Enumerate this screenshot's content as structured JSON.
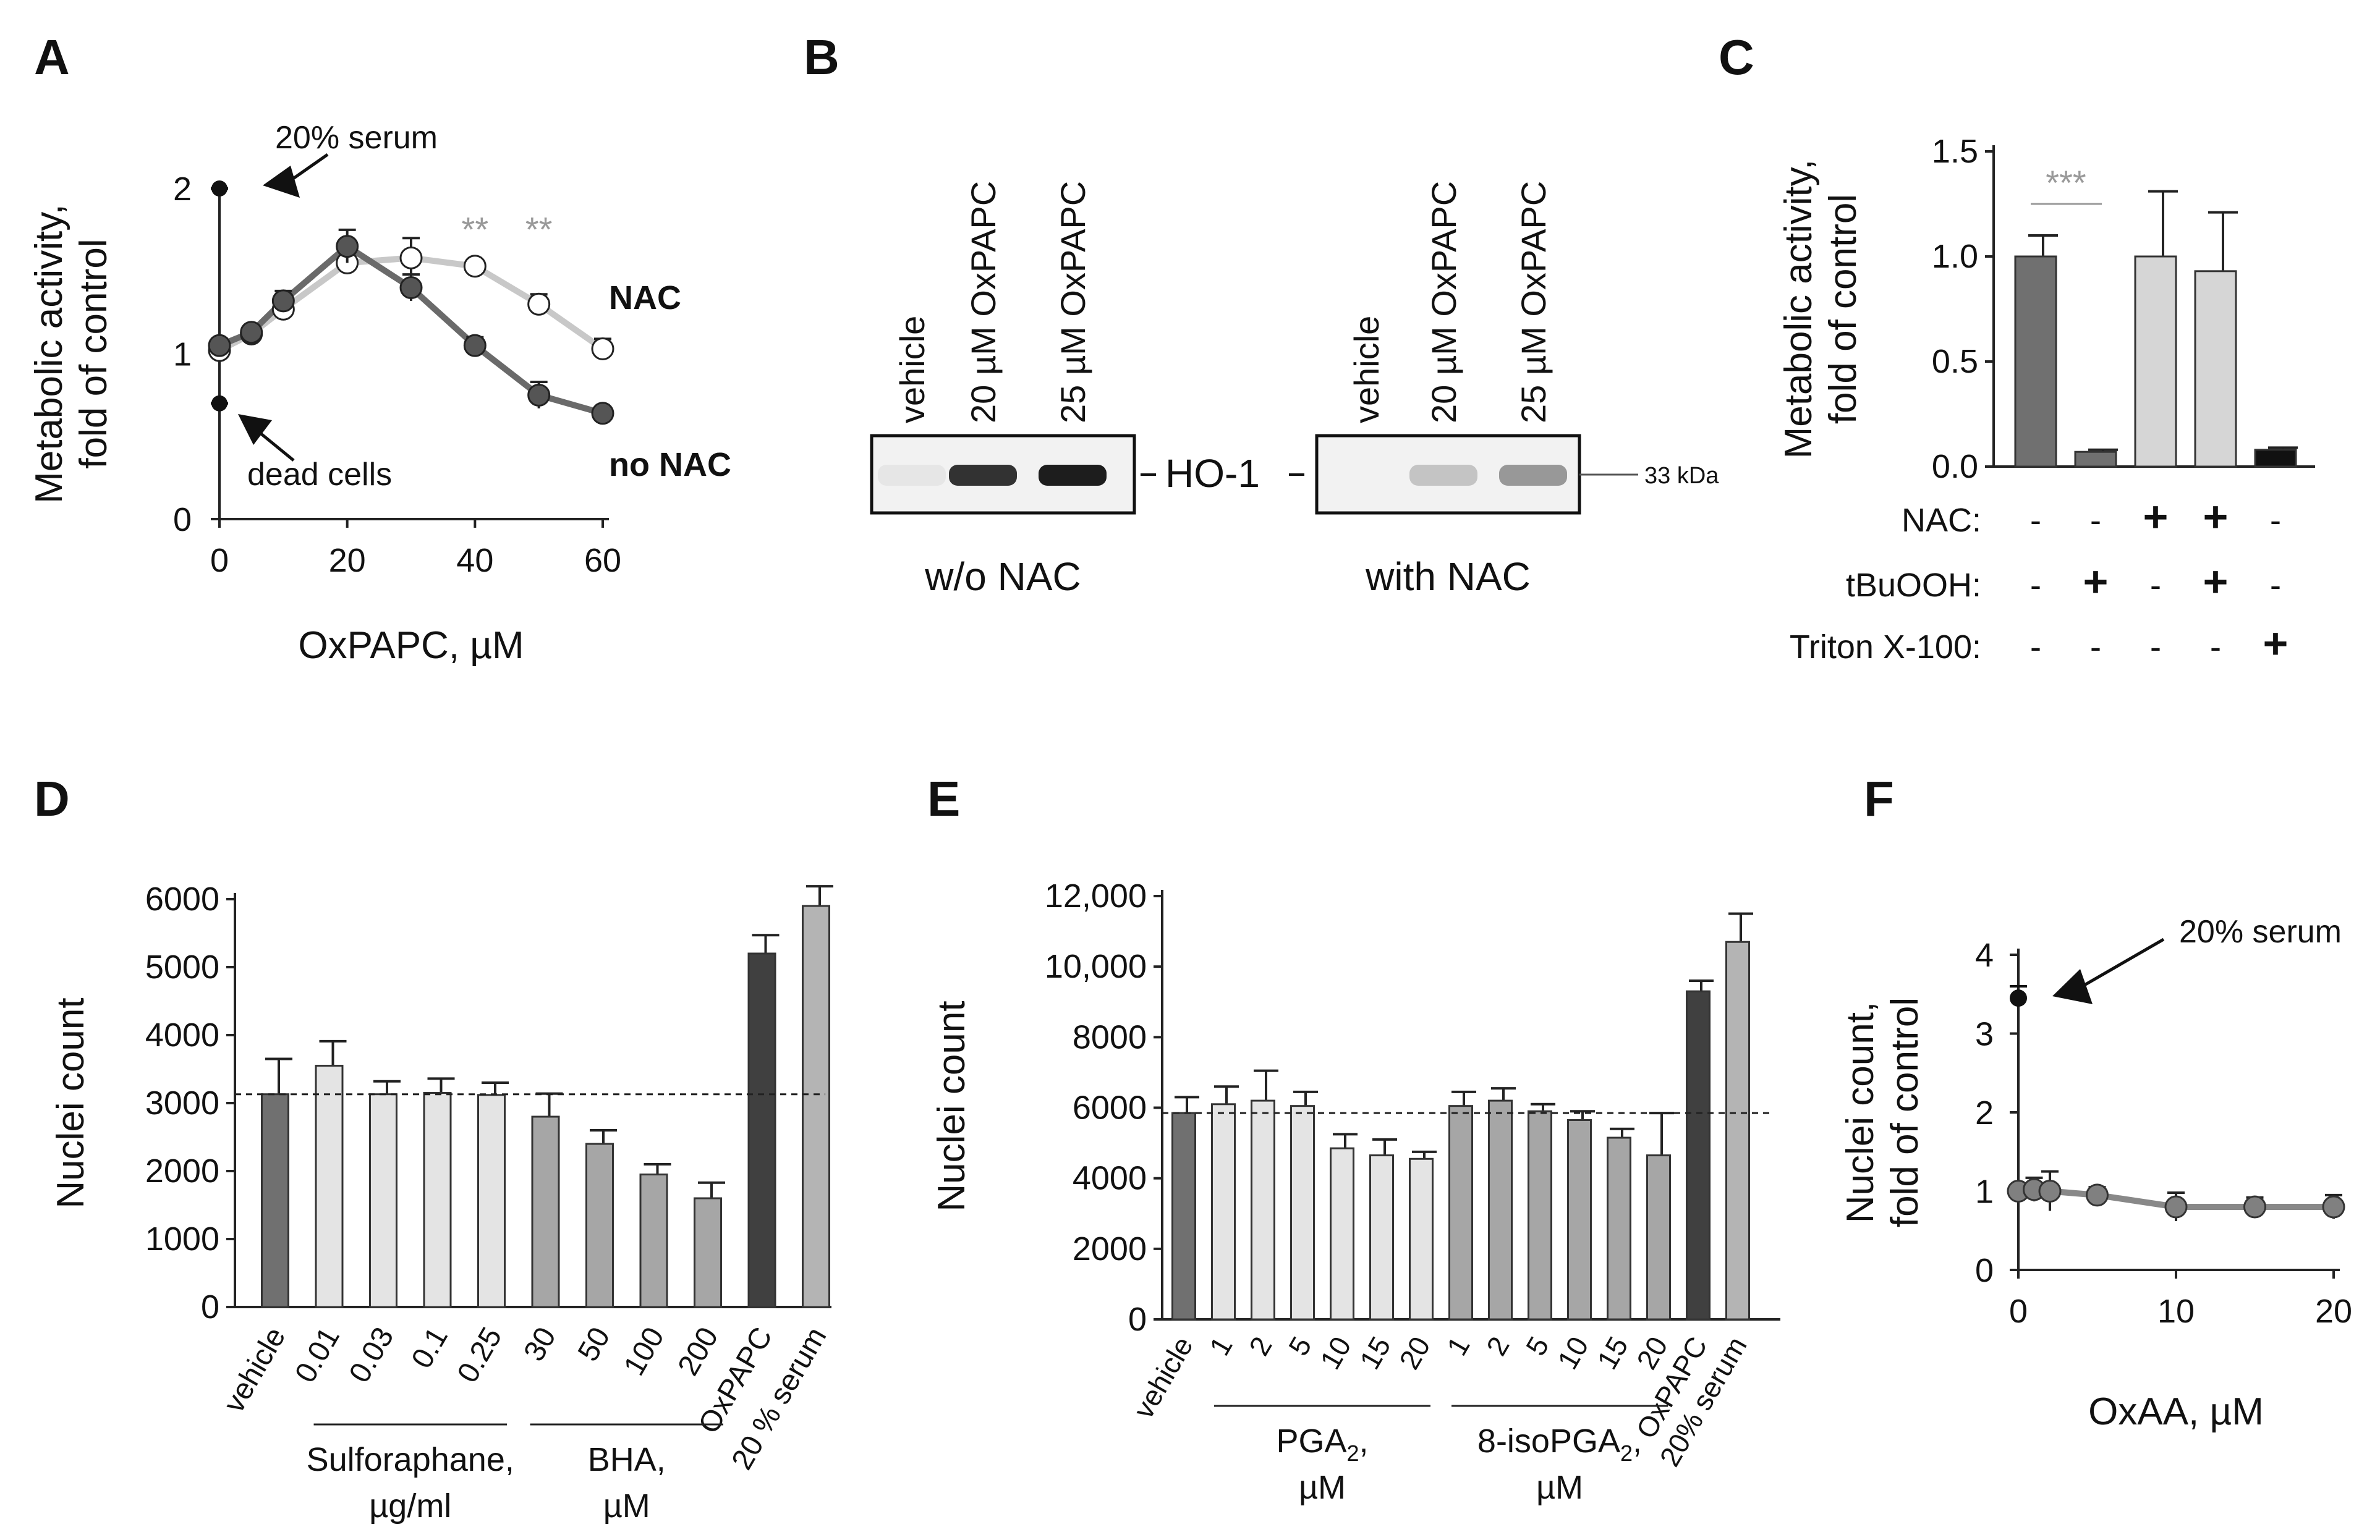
{
  "chart_data": [
    {
      "panel": "A",
      "type": "line",
      "xlabel": "OxPAPC, µM",
      "ylabel": "Metabolic activity, fold of control",
      "xlim": [
        0,
        60
      ],
      "ylim": [
        0,
        2
      ],
      "xticks": [
        "0",
        "20",
        "40",
        "60"
      ],
      "yticks": [
        "0",
        "1",
        "2"
      ],
      "series": [
        {
          "name": "NAC",
          "color": "#ffffff",
          "x": [
            0,
            5,
            10,
            20,
            30,
            40,
            50,
            60
          ],
          "y": [
            1.02,
            1.12,
            1.27,
            1.55,
            1.58,
            1.53,
            1.3,
            1.03
          ],
          "err": [
            0.04,
            0.03,
            0.05,
            0.06,
            0.12,
            0.03,
            0.06,
            0.06
          ]
        },
        {
          "name": "no NAC",
          "color": "#555555",
          "x": [
            0,
            5,
            10,
            20,
            30,
            40,
            50,
            60
          ],
          "y": [
            1.05,
            1.13,
            1.32,
            1.65,
            1.4,
            1.05,
            0.75,
            0.64
          ],
          "err": [
            0.04,
            0.03,
            0.06,
            0.1,
            0.08,
            0.05,
            0.08,
            0.03
          ]
        }
      ],
      "reference_points": [
        {
          "label": "20% serum",
          "x": 0,
          "y": 2.0
        },
        {
          "label": "dead cells",
          "x": 0,
          "y": 0.7
        }
      ],
      "significance": [
        {
          "label": "**",
          "x": 40
        },
        {
          "label": "**",
          "x": 50
        }
      ],
      "series_labels": [
        "NAC",
        "no NAC"
      ]
    },
    {
      "panel": "C",
      "type": "bar",
      "ylabel": "Metabolic activity, fold of control",
      "ylim": [
        0,
        1.5
      ],
      "yticks": [
        "0.0",
        "0.5",
        "1.0",
        "1.5"
      ],
      "values": [
        1.0,
        0.07,
        1.0,
        0.93,
        0.08
      ],
      "errors": [
        0.1,
        0.01,
        0.31,
        0.28,
        0.01
      ],
      "colors": [
        "#707070",
        "#707070",
        "#d6d6d6",
        "#d6d6d6",
        "#111111"
      ],
      "conditions": [
        {
          "label": "NAC:",
          "marks": [
            "-",
            "-",
            "+",
            "+",
            "-"
          ]
        },
        {
          "label": "tBuOOH:",
          "marks": [
            "-",
            "+",
            "-",
            "+",
            "-"
          ]
        },
        {
          "label": "Triton X-100:",
          "marks": [
            "-",
            "-",
            "-",
            "-",
            "+"
          ]
        }
      ],
      "significance": "***"
    },
    {
      "panel": "D",
      "type": "bar",
      "ylabel": "Nuclei count",
      "ylim": [
        0,
        6000
      ],
      "yticks": [
        "0",
        "1000",
        "2000",
        "3000",
        "4000",
        "5000",
        "6000"
      ],
      "categories": [
        "vehicle",
        "0.01",
        "0.03",
        "0.1",
        "0.25",
        "30",
        "50",
        "100",
        "200",
        "OxPAPC",
        "20 % serum"
      ],
      "values": [
        3130,
        3550,
        3130,
        3150,
        3120,
        2800,
        2400,
        1950,
        1600,
        5200,
        5900
      ],
      "errors": [
        520,
        360,
        190,
        210,
        180,
        340,
        200,
        150,
        230,
        270,
        290
      ],
      "colors": [
        "#707070",
        "#e4e4e4",
        "#e4e4e4",
        "#e4e4e4",
        "#e4e4e4",
        "#a6a6a6",
        "#a6a6a6",
        "#a6a6a6",
        "#a6a6a6",
        "#404040",
        "#b4b4b4"
      ],
      "reference_line": 3130,
      "groups": [
        {
          "label_lines": [
            "Sulforaphane,",
            "µg/ml"
          ]
        },
        {
          "label_lines": [
            "BHA,",
            "µM"
          ]
        }
      ]
    },
    {
      "panel": "E",
      "type": "bar",
      "ylabel": "Nuclei count",
      "ylim": [
        0,
        12000
      ],
      "yticks": [
        "0",
        "2000",
        "4000",
        "6000",
        "8000",
        "10,000",
        "12,000"
      ],
      "categories": [
        "vehicle",
        "1",
        "2",
        "5",
        "10",
        "15",
        "20",
        "1",
        "2",
        "5",
        "10",
        "15",
        "20",
        "OxPAPC",
        "20% serum"
      ],
      "values": [
        5850,
        6100,
        6200,
        6050,
        4850,
        4650,
        4550,
        6050,
        6200,
        5900,
        5650,
        5150,
        4650,
        9300,
        10700
      ],
      "errors": [
        450,
        500,
        850,
        400,
        400,
        450,
        200,
        400,
        350,
        200,
        250,
        250,
        1200,
        300,
        800
      ],
      "colors": [
        "#707070",
        "#e4e4e4",
        "#e4e4e4",
        "#e4e4e4",
        "#e4e4e4",
        "#e4e4e4",
        "#e4e4e4",
        "#a6a6a6",
        "#a6a6a6",
        "#a6a6a6",
        "#a6a6a6",
        "#a6a6a6",
        "#a6a6a6",
        "#404040",
        "#b4b4b4"
      ],
      "reference_line": 5850,
      "groups": [
        {
          "label_lines": [
            "PGA",
            "µM"
          ],
          "sub": "2",
          "suffix": ","
        },
        {
          "label_lines": [
            "8-isoPGA",
            "µM"
          ],
          "sub": "2",
          "suffix": ","
        }
      ]
    },
    {
      "panel": "F",
      "type": "line",
      "xlabel": "OxAA, µM",
      "ylabel": "Nuclei count, fold of control",
      "xlim": [
        0,
        20
      ],
      "ylim": [
        0,
        4
      ],
      "xticks": [
        "0",
        "10",
        "20"
      ],
      "yticks": [
        "0",
        "1",
        "2",
        "3",
        "4"
      ],
      "series": [
        {
          "color": "#808080",
          "x": [
            0,
            1,
            2,
            5,
            10,
            15,
            20
          ],
          "y": [
            1.0,
            1.02,
            1.0,
            0.95,
            0.8,
            0.8,
            0.8
          ],
          "err": [
            0.08,
            0.15,
            0.25,
            0.1,
            0.18,
            0.12,
            0.15
          ]
        }
      ],
      "reference_points": [
        {
          "label": "20% serum",
          "x": 0,
          "y": 3.45
        }
      ]
    }
  ],
  "panel_letters": [
    "A",
    "B",
    "C",
    "D",
    "E",
    "F"
  ],
  "blot": {
    "lane_labels_left": [
      "vehicle",
      "20 µM OxPAPC",
      "25 µM OxPAPC"
    ],
    "lane_labels_right": [
      "vehicle",
      "20 µM OxPAPC",
      "25 µM OxPAPC"
    ],
    "band_label": "HO-1",
    "marker": "33 kDa",
    "caption_left": "w/o NAC",
    "caption_right": "with NAC",
    "intensity_left": [
      0.05,
      0.85,
      0.95
    ],
    "intensity_right": [
      0.0,
      0.2,
      0.4
    ]
  }
}
